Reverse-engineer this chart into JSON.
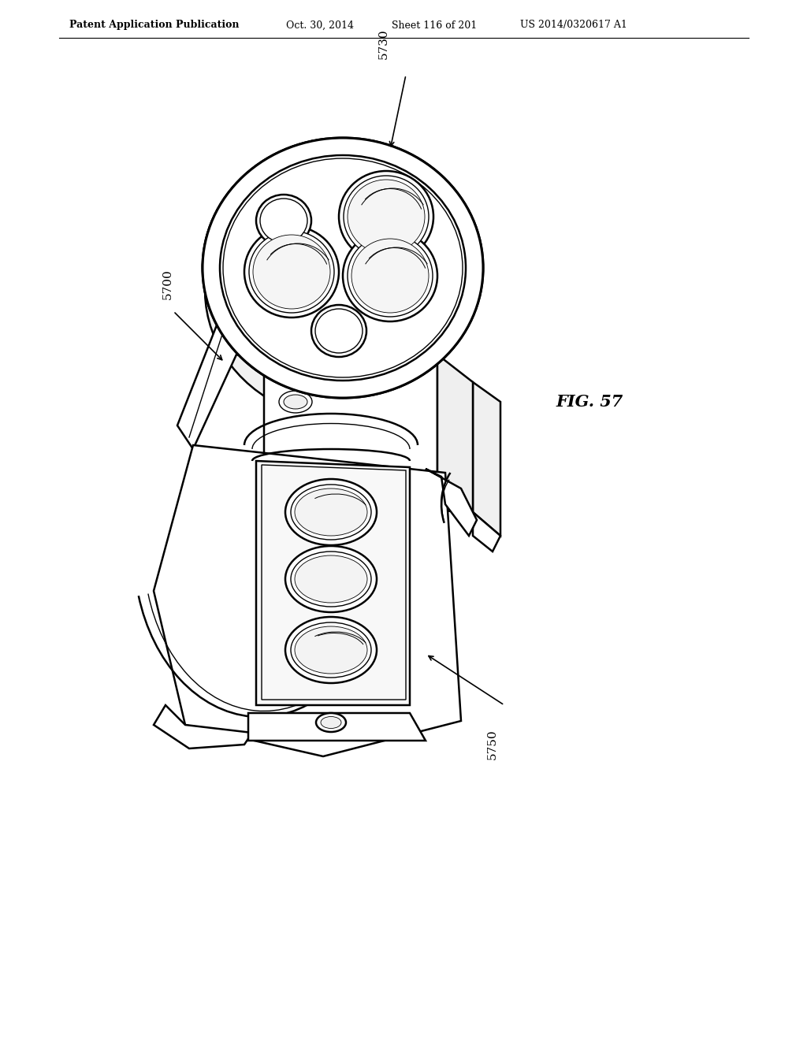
{
  "bg_color": "#ffffff",
  "line_color": "#000000",
  "header_text": "Patent Application Publication",
  "header_date": "Oct. 30, 2014",
  "header_sheet": "Sheet 116 of 201",
  "header_patent": "US 2014/0320617 A1",
  "fig_label": "FIG. 57",
  "label_5700": "5700",
  "label_5730": "5730",
  "label_5750": "5750",
  "header_fontsize": 9,
  "label_fontsize": 11,
  "fig_label_fontsize": 15,
  "lw_main": 1.8,
  "lw_thin": 1.0,
  "lw_thick": 2.2
}
